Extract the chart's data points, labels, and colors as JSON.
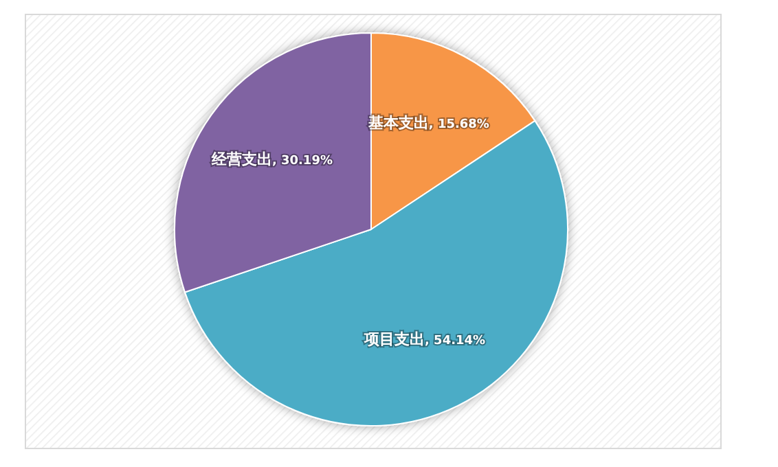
{
  "chart_data": {
    "type": "pie",
    "categories": [
      "基本支出",
      "项目支出",
      "经营支出"
    ],
    "values": [
      15.68,
      54.14,
      30.19
    ],
    "colors": [
      "#f79646",
      "#4bacc6",
      "#8064a2"
    ],
    "value_labels": [
      ", 15.68%",
      ", 54.14%",
      ", 30.19%"
    ]
  }
}
